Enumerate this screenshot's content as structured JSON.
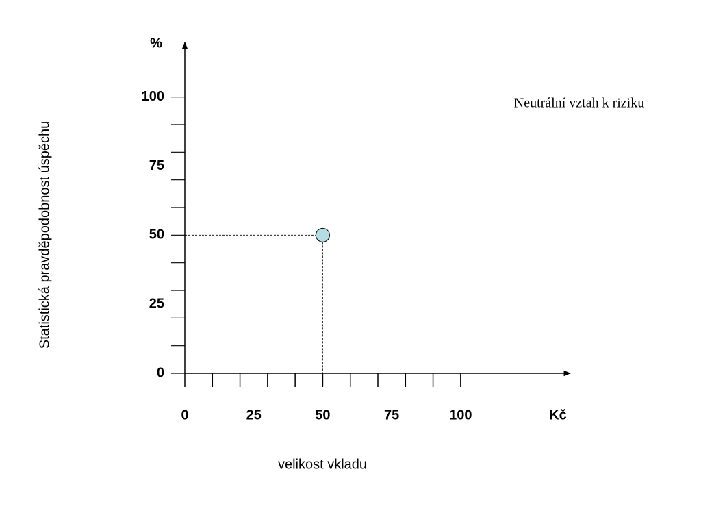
{
  "chart_data": {
    "type": "scatter",
    "x_unit": "Kč",
    "y_unit": "%",
    "xlabel": "velikost vkladu",
    "ylabel": "Statistická pravděpodobnost úspěchu",
    "annotation": "Neutrální vztah k riziku",
    "x": [
      50
    ],
    "values": [
      50
    ],
    "color": "#b3dde3",
    "xlim": [
      0,
      140
    ],
    "ylim": [
      0,
      120
    ],
    "xticks": [
      0,
      25,
      50,
      75,
      100
    ],
    "yticks": [
      0,
      25,
      50,
      75,
      100
    ],
    "xminor_ticks": [
      0,
      10,
      20,
      30,
      40,
      50,
      60,
      70,
      80,
      90,
      100
    ],
    "yminor_ticks": [
      0,
      10,
      20,
      30,
      40,
      50,
      60,
      70,
      80,
      90,
      100
    ],
    "guide_lines": true
  }
}
